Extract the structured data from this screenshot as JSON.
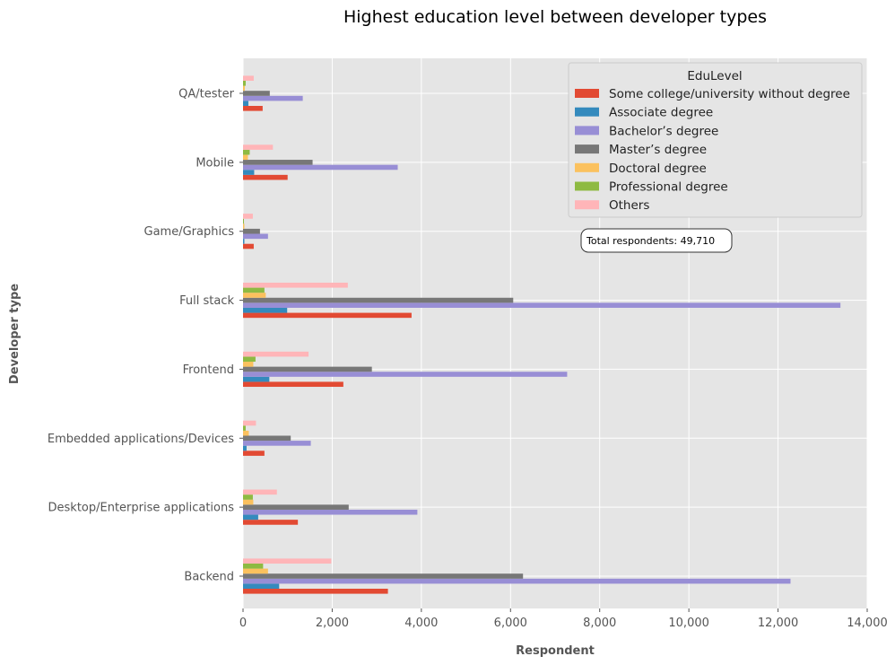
{
  "chart_data": {
    "type": "bar",
    "orientation": "horizontal",
    "title": "Highest education level between developer types",
    "xlabel": "Respondent",
    "ylabel": "Developer type",
    "xlim": [
      0,
      14000
    ],
    "x_ticks": [
      "0",
      "2,000",
      "4,000",
      "6,000",
      "8,000",
      "10,000",
      "12,000",
      "14,000"
    ],
    "grid": true,
    "categories": [
      "Backend",
      "Desktop/Enterprise applications",
      "Embedded applications/Devices",
      "Frontend",
      "Full stack",
      "Game/Graphics",
      "Mobile",
      "QA/tester"
    ],
    "legend": {
      "title": "EduLevel",
      "placement": "upper right"
    },
    "series": [
      {
        "name": "Some college/university without degree",
        "color": "#E24A33",
        "values": [
          3250,
          1230,
          480,
          2250,
          3780,
          240,
          1000,
          440
        ]
      },
      {
        "name": "Associate degree",
        "color": "#348ABD",
        "values": [
          810,
          340,
          80,
          590,
          990,
          30,
          250,
          120
        ]
      },
      {
        "name": "Bachelor’s degree",
        "color": "#988ED5",
        "values": [
          12280,
          3910,
          1520,
          7270,
          13400,
          560,
          3470,
          1340
        ]
      },
      {
        "name": "Master’s degree",
        "color": "#777777",
        "values": [
          6280,
          2370,
          1070,
          2890,
          6060,
          380,
          1560,
          600
        ]
      },
      {
        "name": "Doctoral degree",
        "color": "#FBC15E",
        "values": [
          560,
          230,
          130,
          230,
          510,
          30,
          110,
          40
        ]
      },
      {
        "name": "Professional degree",
        "color": "#8EBA42",
        "values": [
          450,
          220,
          60,
          280,
          480,
          20,
          150,
          60
        ]
      },
      {
        "name": "Others",
        "color": "#FFB5B8",
        "values": [
          1980,
          760,
          290,
          1470,
          2350,
          220,
          670,
          240
        ]
      }
    ],
    "annotation": "Total respondents: 49,710"
  }
}
